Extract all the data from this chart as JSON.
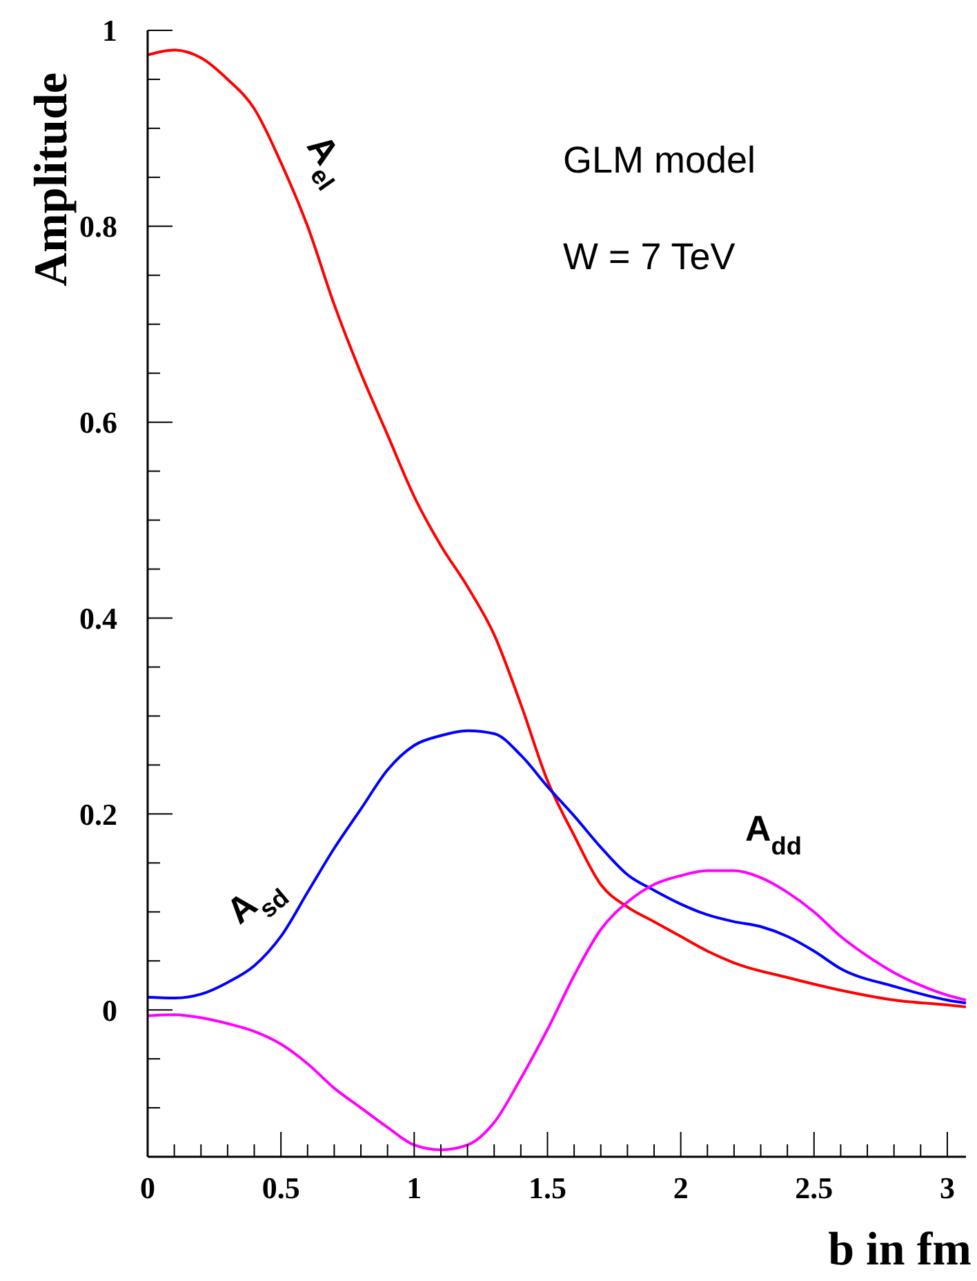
{
  "chart_data": {
    "type": "line",
    "xlabel": "b in fm",
    "ylabel": "Amplitude",
    "annotations": [
      "GLM model",
      "W = 7 TeV"
    ],
    "xlim": [
      0,
      3.07
    ],
    "ylim": [
      -0.15,
      1
    ],
    "xticks": [
      0,
      {
        "value": 0.1,
        "label": null
      },
      {
        "value": 0.2,
        "label": null
      },
      {
        "value": 0.3,
        "label": null
      },
      {
        "value": 0.4,
        "label": null
      },
      0.5,
      {
        "value": 0.6,
        "label": null
      },
      {
        "value": 0.7,
        "label": null
      },
      {
        "value": 0.8,
        "label": null
      },
      {
        "value": 0.9,
        "label": null
      },
      1,
      {
        "value": 1.1,
        "label": null
      },
      {
        "value": 1.2,
        "label": null
      },
      {
        "value": 1.3,
        "label": null
      },
      {
        "value": 1.4,
        "label": null
      },
      1.5,
      {
        "value": 1.6,
        "label": null
      },
      {
        "value": 1.7,
        "label": null
      },
      {
        "value": 1.8,
        "label": null
      },
      {
        "value": 1.9,
        "label": null
      },
      2,
      {
        "value": 2.1,
        "label": null
      },
      {
        "value": 2.2,
        "label": null
      },
      {
        "value": 2.3,
        "label": null
      },
      {
        "value": 2.4,
        "label": null
      },
      2.5,
      {
        "value": 2.6,
        "label": null
      },
      {
        "value": 2.7,
        "label": null
      },
      {
        "value": 2.8,
        "label": null
      },
      {
        "value": 2.9,
        "label": null
      },
      3
    ],
    "yticks": [
      {
        "value": -0.1,
        "label": null
      },
      {
        "value": -0.05,
        "label": null
      },
      0,
      {
        "value": 0.05,
        "label": null
      },
      {
        "value": 0.1,
        "label": null
      },
      {
        "value": 0.15,
        "label": null
      },
      0.2,
      {
        "value": 0.25,
        "label": null
      },
      {
        "value": 0.3,
        "label": null
      },
      {
        "value": 0.35,
        "label": null
      },
      0.4,
      {
        "value": 0.45,
        "label": null
      },
      {
        "value": 0.5,
        "label": null
      },
      {
        "value": 0.55,
        "label": null
      },
      0.6,
      {
        "value": 0.65,
        "label": null
      },
      {
        "value": 0.7,
        "label": null
      },
      {
        "value": 0.75,
        "label": null
      },
      0.8,
      {
        "value": 0.85,
        "label": null
      },
      {
        "value": 0.9,
        "label": null
      },
      {
        "value": 0.95,
        "label": null
      },
      1
    ],
    "grid": false,
    "line_style": "solid",
    "marker": "none",
    "series": [
      {
        "name": "A$_{el}$",
        "color": "#ff0000",
        "x": [
          0,
          0.1,
          0.2,
          0.3,
          0.4,
          0.5,
          0.6,
          0.7,
          0.8,
          0.9,
          1.0,
          1.1,
          1.2,
          1.3,
          1.4,
          1.5,
          1.6,
          1.7,
          1.8,
          1.9,
          2.0,
          2.1,
          2.2,
          2.4,
          2.6,
          2.8,
          3.0,
          3.07
        ],
        "values": [
          0.975,
          0.98,
          0.972,
          0.95,
          0.92,
          0.865,
          0.8,
          0.72,
          0.65,
          0.587,
          0.524,
          0.474,
          0.432,
          0.383,
          0.312,
          0.234,
          0.178,
          0.128,
          0.105,
          0.09,
          0.075,
          0.06,
          0.048,
          0.033,
          0.02,
          0.01,
          0.005,
          0.003
        ]
      },
      {
        "name": "A$_{sd}$",
        "color": "#0000ff",
        "x": [
          0,
          0.1,
          0.2,
          0.3,
          0.4,
          0.5,
          0.6,
          0.7,
          0.8,
          0.9,
          1.0,
          1.1,
          1.2,
          1.3,
          1.4,
          1.5,
          1.6,
          1.7,
          1.8,
          1.9,
          2.0,
          2.1,
          2.2,
          2.3,
          2.4,
          2.5,
          2.6,
          2.8,
          3.0,
          3.07
        ],
        "values": [
          0.013,
          0.012,
          0.016,
          0.028,
          0.045,
          0.075,
          0.12,
          0.165,
          0.205,
          0.245,
          0.27,
          0.28,
          0.285,
          0.282,
          0.26,
          0.228,
          0.198,
          0.166,
          0.138,
          0.122,
          0.108,
          0.097,
          0.09,
          0.085,
          0.075,
          0.06,
          0.042,
          0.024,
          0.01,
          0.007
        ]
      },
      {
        "name": "A$_{dd}$",
        "color": "#ff00ff",
        "x": [
          0,
          0.1,
          0.2,
          0.3,
          0.4,
          0.5,
          0.6,
          0.7,
          0.8,
          0.9,
          1.0,
          1.1,
          1.2,
          1.3,
          1.4,
          1.5,
          1.6,
          1.7,
          1.8,
          1.9,
          2.0,
          2.1,
          2.2,
          2.3,
          2.4,
          2.5,
          2.6,
          2.7,
          2.8,
          2.9,
          3.0,
          3.07
        ],
        "values": [
          -0.006,
          -0.005,
          -0.008,
          -0.014,
          -0.022,
          -0.035,
          -0.055,
          -0.08,
          -0.1,
          -0.12,
          -0.138,
          -0.143,
          -0.138,
          -0.115,
          -0.07,
          -0.02,
          0.035,
          0.082,
          0.11,
          0.128,
          0.137,
          0.142,
          0.142,
          0.135,
          0.12,
          0.1,
          0.075,
          0.055,
          0.038,
          0.025,
          0.015,
          0.01
        ]
      }
    ]
  }
}
